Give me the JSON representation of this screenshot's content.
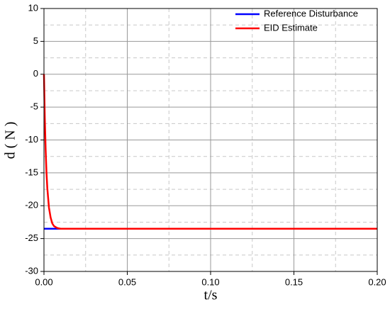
{
  "chart_data": {
    "type": "line",
    "xlabel": "t/s",
    "ylabel": "d ( N )",
    "xlim": [
      0,
      0.2
    ],
    "ylim": [
      -30,
      10
    ],
    "xticks": [
      {
        "value": 0,
        "label": "0.00"
      },
      {
        "value": 0.05,
        "label": "0.05"
      },
      {
        "value": 0.1,
        "label": "0.10"
      },
      {
        "value": 0.15,
        "label": "0.15"
      },
      {
        "value": 0.2,
        "label": "0.20"
      }
    ],
    "yticks": [
      -30,
      -25,
      -20,
      -15,
      -10,
      -5,
      0,
      5,
      10
    ],
    "grid": true,
    "legend": "upper right",
    "series": [
      {
        "name": "Reference Disturbance",
        "color": "#0000ff",
        "x": [
          0,
          0.2
        ],
        "values": [
          -23.5,
          -23.5
        ]
      },
      {
        "name": "EID Estimate",
        "color": "#ff0000",
        "x": [
          0,
          0.0005,
          0.001,
          0.0015,
          0.002,
          0.003,
          0.004,
          0.005,
          0.006,
          0.008,
          0.01,
          0.2
        ],
        "values": [
          0,
          -6.7,
          -11.4,
          -14.9,
          -17.3,
          -20.3,
          -21.8,
          -22.7,
          -23.1,
          -23.4,
          -23.5,
          -23.5
        ]
      }
    ]
  }
}
